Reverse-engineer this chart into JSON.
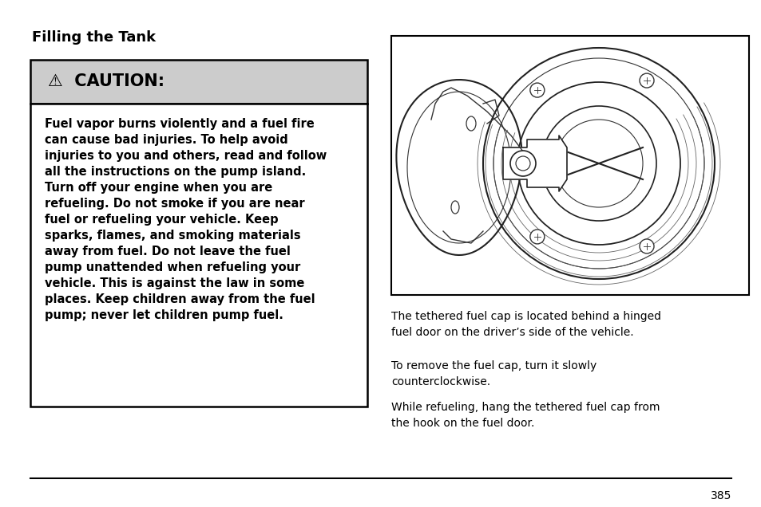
{
  "title": "Filling the Tank",
  "title_fontsize": 13,
  "caution_header": "⚠  CAUTION:",
  "caution_header_fontsize": 15,
  "caution_box_bg": "#cccccc",
  "caution_body_bg": "#ffffff",
  "caution_text_fontsize": 10.5,
  "caution_text": "Fuel vapor burns violently and a fuel fire\ncan cause bad injuries. To help avoid\ninjuries to you and others, read and follow\nall the instructions on the pump island.\nTurn off your engine when you are\nrefueling. Do not smoke if you are near\nfuel or refueling your vehicle. Keep\nsparks, flames, and smoking materials\naway from fuel. Do not leave the fuel\npump unattended when refueling your\nvehicle. This is against the law in some\nplaces. Keep children away from the fuel\npump; never let children pump fuel.",
  "right_para1": "The tethered fuel cap is located behind a hinged\nfuel door on the driver’s side of the vehicle.",
  "right_para2": "To remove the fuel cap, turn it slowly\ncounterclockwise.",
  "right_para3": "While refueling, hang the tethered fuel cap from\nthe hook on the fuel door.",
  "para_fontsize": 10.0,
  "page_number": "385",
  "bg_color": "#ffffff",
  "text_color": "#000000",
  "border_color": "#000000"
}
